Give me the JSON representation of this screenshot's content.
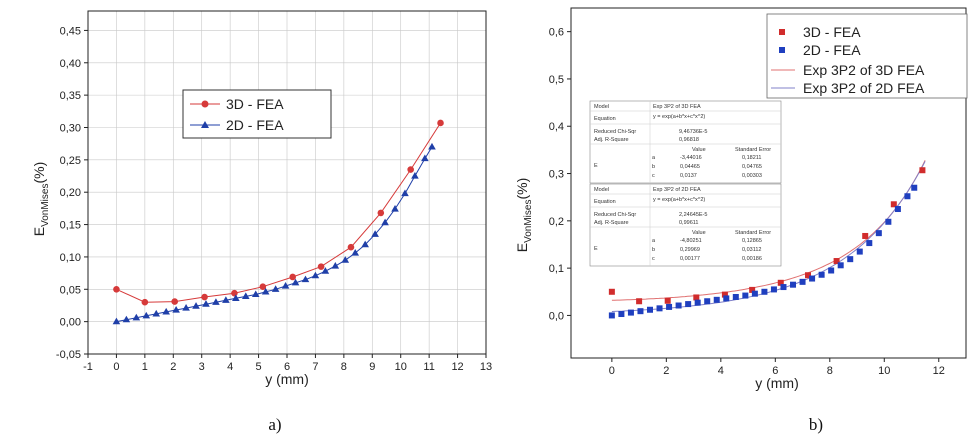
{
  "panels": [
    {
      "caption": "a)",
      "chart_data": {
        "type": "line",
        "xlabel": "y (mm)",
        "ylabel_main": "E",
        "ylabel_sub": "VonMises",
        "ylabel_unit": "(%)",
        "xlim": [
          -1,
          13
        ],
        "ylim": [
          -0.05,
          0.48
        ],
        "xticks": [
          -1,
          0,
          1,
          2,
          3,
          4,
          5,
          6,
          7,
          8,
          9,
          10,
          11,
          12,
          13
        ],
        "yticks": [
          -0.05,
          0,
          0.05,
          0.1,
          0.15,
          0.2,
          0.25,
          0.3,
          0.35,
          0.4,
          0.45
        ],
        "decimal_comma": true,
        "ytick_decimals": 2,
        "xtick_decimals": 0,
        "grid": true,
        "legend_position": "center",
        "series": [
          {
            "name": "3D - FEA",
            "marker": "circle",
            "color": "#d63a3a",
            "x": [
              0,
              1.0,
              2.05,
              3.1,
              4.15,
              5.15,
              6.2,
              7.2,
              8.25,
              9.3,
              10.35,
              11.4
            ],
            "y": [
              0.05,
              0.03,
              0.031,
              0.038,
              0.044,
              0.054,
              0.069,
              0.085,
              0.115,
              0.168,
              0.235,
              0.307
            ]
          },
          {
            "name": "2D - FEA",
            "marker": "triangle",
            "color": "#1f3fa8",
            "x": [
              0,
              0.35,
              0.7,
              1.05,
              1.4,
              1.75,
              2.1,
              2.45,
              2.8,
              3.15,
              3.5,
              3.85,
              4.2,
              4.55,
              4.9,
              5.25,
              5.6,
              5.95,
              6.3,
              6.65,
              7.0,
              7.35,
              7.7,
              8.05,
              8.4,
              8.75,
              9.1,
              9.45,
              9.8,
              10.15,
              10.5,
              10.85,
              11.1
            ],
            "y": [
              0.0,
              0.003,
              0.006,
              0.009,
              0.012,
              0.015,
              0.018,
              0.021,
              0.024,
              0.027,
              0.03,
              0.033,
              0.036,
              0.039,
              0.042,
              0.046,
              0.05,
              0.055,
              0.06,
              0.065,
              0.071,
              0.078,
              0.086,
              0.095,
              0.106,
              0.119,
              0.135,
              0.153,
              0.174,
              0.198,
              0.225,
              0.252,
              0.27
            ]
          }
        ]
      }
    },
    {
      "caption": "b)",
      "chart_data": {
        "type": "scatter",
        "xlabel": "y (mm)",
        "ylabel_main": "E",
        "ylabel_sub": "VonMises",
        "ylabel_unit": "(%)",
        "xlim": [
          -1.5,
          13
        ],
        "ylim": [
          -0.09,
          0.65
        ],
        "xticks": [
          0,
          2,
          4,
          6,
          8,
          10,
          12
        ],
        "yticks": [
          0.0,
          0.1,
          0.2,
          0.3,
          0.4,
          0.5,
          0.6
        ],
        "decimal_comma": true,
        "ytick_decimals": 1,
        "xtick_decimals": 0,
        "grid": false,
        "legend_position": "top-right",
        "series": [
          {
            "name": "3D - FEA",
            "marker": "square",
            "color": "#d12c2c",
            "x": [
              0,
              1.0,
              2.05,
              3.1,
              4.15,
              5.15,
              6.2,
              7.2,
              8.25,
              9.3,
              10.35,
              11.4
            ],
            "y": [
              0.05,
              0.03,
              0.031,
              0.038,
              0.044,
              0.054,
              0.069,
              0.085,
              0.115,
              0.168,
              0.235,
              0.307
            ]
          },
          {
            "name": "2D - FEA",
            "marker": "square",
            "color": "#1f3fbf",
            "x": [
              0,
              0.35,
              0.7,
              1.05,
              1.4,
              1.75,
              2.1,
              2.45,
              2.8,
              3.15,
              3.5,
              3.85,
              4.2,
              4.55,
              4.9,
              5.25,
              5.6,
              5.95,
              6.3,
              6.65,
              7.0,
              7.35,
              7.7,
              8.05,
              8.4,
              8.75,
              9.1,
              9.45,
              9.8,
              10.15,
              10.5,
              10.85,
              11.1
            ],
            "y": [
              0.0,
              0.003,
              0.006,
              0.009,
              0.012,
              0.015,
              0.018,
              0.021,
              0.024,
              0.027,
              0.03,
              0.033,
              0.036,
              0.039,
              0.042,
              0.046,
              0.05,
              0.055,
              0.06,
              0.065,
              0.071,
              0.078,
              0.086,
              0.095,
              0.106,
              0.119,
              0.135,
              0.153,
              0.174,
              0.198,
              0.225,
              0.252,
              0.27
            ]
          },
          {
            "name": "Exp 3P2 of 3D FEA",
            "kind": "fit",
            "color": "#e07070",
            "a": -3.44016,
            "b": 0.04465,
            "c": 0.0137
          },
          {
            "name": "Exp 3P2 of 2D FEA",
            "kind": "fit",
            "color": "#8080c8",
            "a": -4.80251,
            "b": 0.29969,
            "c": 0.00177
          }
        ],
        "fit_tables": [
          {
            "model_label": "Model",
            "model_value": "Exp 3P2 of 3D FEA",
            "equation_label": "Equation",
            "equation_value": "y = exp(a+b*x+c*x^2)",
            "chisq_label": "Reduced Chi-Sqr",
            "chisq_value": "9,46736E-5",
            "r2_label": "Adj. R-Square",
            "r2_value": "0,96818",
            "value_header": "Value",
            "error_header": "Standard Error",
            "param_group": "E",
            "params": [
              {
                "name": "a",
                "value": "-3,44016",
                "error": "0,18211"
              },
              {
                "name": "b",
                "value": "0,04465",
                "error": "0,04765"
              },
              {
                "name": "c",
                "value": "0,0137",
                "error": "0,00303"
              }
            ]
          },
          {
            "model_label": "Model",
            "model_value": "Exp 3P2 of 2D FEA",
            "equation_label": "Equation",
            "equation_value": "y = exp(a+b*x+c*x^2)",
            "chisq_label": "Reduced Chi-Sqr",
            "chisq_value": "2,24645E-5",
            "r2_label": "Adj. R-Square",
            "r2_value": "0,99611",
            "value_header": "Value",
            "error_header": "Standard Error",
            "param_group": "E",
            "params": [
              {
                "name": "a",
                "value": "-4,80251",
                "error": "0,12865"
              },
              {
                "name": "b",
                "value": "0,29969",
                "error": "0,03112"
              },
              {
                "name": "c",
                "value": "0,00177",
                "error": "0,00186"
              }
            ]
          }
        ]
      }
    }
  ]
}
